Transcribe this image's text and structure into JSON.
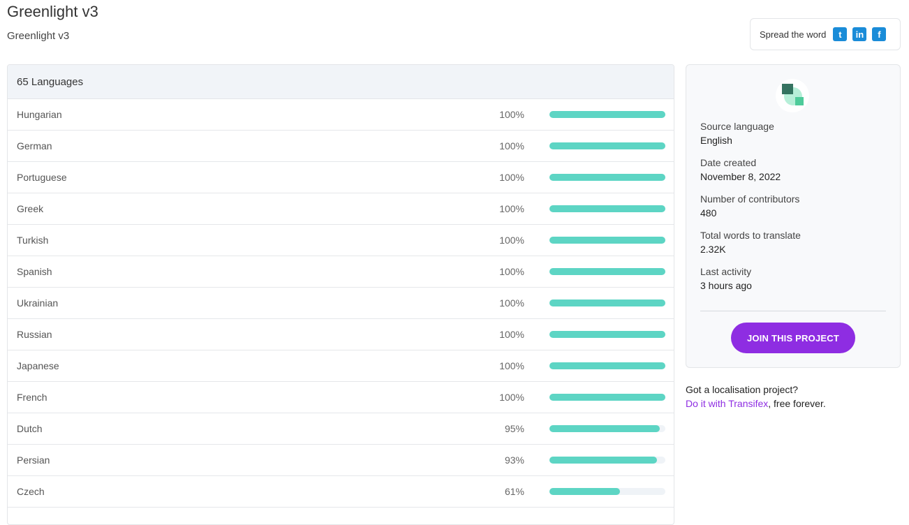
{
  "header": {
    "title": "Greenlight v3",
    "subtitle": "Greenlight v3"
  },
  "share": {
    "label": "Spread the word",
    "icons": [
      "twitter-icon",
      "linkedin-icon",
      "facebook-icon"
    ],
    "glyphs": [
      "t",
      "in",
      "f"
    ]
  },
  "languages": {
    "heading": "65 Languages",
    "items": [
      {
        "name": "Hungarian",
        "percent": 100,
        "label": "100%"
      },
      {
        "name": "German",
        "percent": 100,
        "label": "100%"
      },
      {
        "name": "Portuguese",
        "percent": 100,
        "label": "100%"
      },
      {
        "name": "Greek",
        "percent": 100,
        "label": "100%"
      },
      {
        "name": "Turkish",
        "percent": 100,
        "label": "100%"
      },
      {
        "name": "Spanish",
        "percent": 100,
        "label": "100%"
      },
      {
        "name": "Ukrainian",
        "percent": 100,
        "label": "100%"
      },
      {
        "name": "Russian",
        "percent": 100,
        "label": "100%"
      },
      {
        "name": "Japanese",
        "percent": 100,
        "label": "100%"
      },
      {
        "name": "French",
        "percent": 100,
        "label": "100%"
      },
      {
        "name": "Dutch",
        "percent": 95,
        "label": "95%"
      },
      {
        "name": "Persian",
        "percent": 93,
        "label": "93%"
      },
      {
        "name": "Czech",
        "percent": 61,
        "label": "61%"
      },
      {
        "name": "",
        "percent": 0,
        "label": ""
      }
    ]
  },
  "info": {
    "facts": [
      {
        "key": "Source language",
        "value": "English"
      },
      {
        "key": "Date created",
        "value": "November 8, 2022"
      },
      {
        "key": "Number of contributors",
        "value": "480"
      },
      {
        "key": "Total words to translate",
        "value": "2.32K"
      },
      {
        "key": "Last activity",
        "value": "3 hours ago"
      }
    ],
    "join_label": "JOIN THIS PROJECT"
  },
  "promo": {
    "line1": "Got a localisation project?",
    "link": "Do it with Transifex",
    "rest": ", free forever."
  },
  "colors": {
    "accent": "#8e2de2",
    "bar": "#5dd5c4",
    "social": "#1a8cd8"
  }
}
